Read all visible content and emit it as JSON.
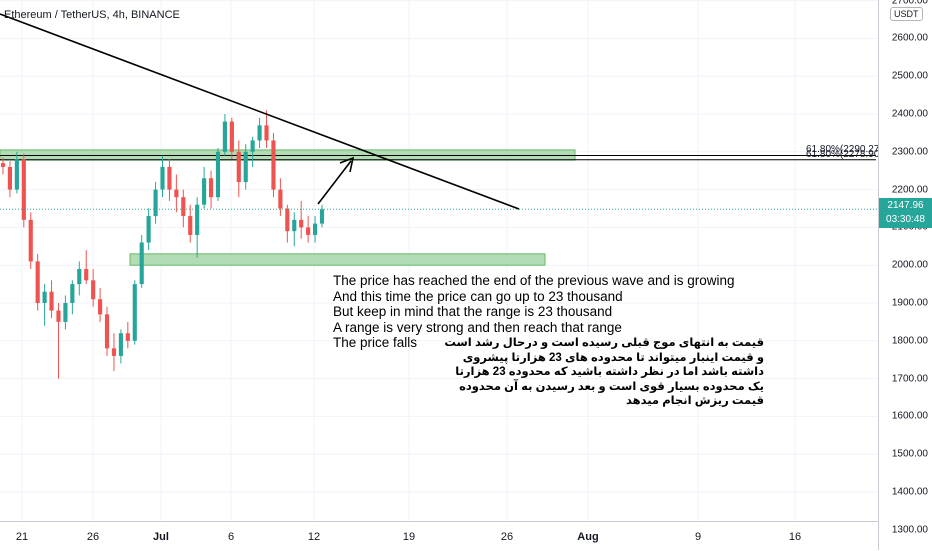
{
  "chart_data": {
    "type": "candlestick",
    "title": "Ethereum / TetherUS, 4h, BINANCE",
    "currency": "USDT",
    "y_ticks": [
      "2700.00",
      "2600.00",
      "2500.00",
      "2400.00",
      "2300.00",
      "2200.00",
      "2100.00",
      "2000.00",
      "1900.00",
      "1800.00",
      "1700.00",
      "1600.00",
      "1500.00",
      "1400.00",
      "1300.00"
    ],
    "ylim": [
      1300,
      2700
    ],
    "x_ticks": [
      {
        "label": "21",
        "bold": false
      },
      {
        "label": "26",
        "bold": false
      },
      {
        "label": "Jul",
        "bold": true
      },
      {
        "label": "6",
        "bold": false
      },
      {
        "label": "12",
        "bold": false
      },
      {
        "label": "19",
        "bold": false
      },
      {
        "label": "26",
        "bold": false
      },
      {
        "label": "Aug",
        "bold": true
      },
      {
        "label": "9",
        "bold": false
      },
      {
        "label": "16",
        "bold": false
      }
    ],
    "last_price": "2147.96",
    "countdown": "03:30:48",
    "fib_levels": [
      {
        "label": "61.80%(2290.27)",
        "value": 2290.27
      },
      {
        "label": "61.80%(2278.90)",
        "value": 2278.9
      }
    ],
    "zones": [
      {
        "name": "resistance-zone",
        "from": 2278,
        "to": 2305
      },
      {
        "name": "support-zone",
        "from": 2000,
        "to": 2030
      }
    ],
    "candles": [
      [
        2270,
        2285,
        2240,
        2260
      ],
      [
        2260,
        2275,
        2180,
        2200
      ],
      [
        2200,
        2300,
        2190,
        2280
      ],
      [
        2280,
        2295,
        2100,
        2120
      ],
      [
        2120,
        2140,
        1990,
        2010
      ],
      [
        2010,
        2030,
        1880,
        1900
      ],
      [
        1900,
        1950,
        1840,
        1930
      ],
      [
        1930,
        1960,
        1860,
        1880
      ],
      [
        1880,
        1900,
        1700,
        1850
      ],
      [
        1850,
        1920,
        1830,
        1900
      ],
      [
        1900,
        1960,
        1870,
        1950
      ],
      [
        1950,
        2010,
        1920,
        1990
      ],
      [
        1990,
        2040,
        1950,
        1960
      ],
      [
        1960,
        1990,
        1890,
        1910
      ],
      [
        1910,
        1940,
        1850,
        1870
      ],
      [
        1870,
        1890,
        1760,
        1780
      ],
      [
        1780,
        1820,
        1720,
        1760
      ],
      [
        1760,
        1830,
        1740,
        1820
      ],
      [
        1820,
        1850,
        1780,
        1800
      ],
      [
        1800,
        1960,
        1790,
        1950
      ],
      [
        1950,
        2080,
        1940,
        2060
      ],
      [
        2060,
        2150,
        2040,
        2130
      ],
      [
        2130,
        2220,
        2110,
        2200
      ],
      [
        2200,
        2290,
        2180,
        2260
      ],
      [
        2260,
        2280,
        2170,
        2200
      ],
      [
        2200,
        2240,
        2140,
        2180
      ],
      [
        2180,
        2200,
        2100,
        2130
      ],
      [
        2130,
        2160,
        2060,
        2080
      ],
      [
        2080,
        2180,
        2020,
        2160
      ],
      [
        2160,
        2260,
        2150,
        2230
      ],
      [
        2230,
        2250,
        2150,
        2180
      ],
      [
        2180,
        2310,
        2170,
        2300
      ],
      [
        2300,
        2400,
        2290,
        2380
      ],
      [
        2380,
        2390,
        2280,
        2300
      ],
      [
        2300,
        2330,
        2180,
        2220
      ],
      [
        2220,
        2320,
        2200,
        2300
      ],
      [
        2300,
        2340,
        2260,
        2330
      ],
      [
        2330,
        2390,
        2310,
        2370
      ],
      [
        2370,
        2410,
        2310,
        2330
      ],
      [
        2330,
        2350,
        2180,
        2200
      ],
      [
        2200,
        2230,
        2130,
        2150
      ],
      [
        2150,
        2160,
        2060,
        2090
      ],
      [
        2090,
        2140,
        2050,
        2120
      ],
      [
        2120,
        2170,
        2070,
        2100
      ],
      [
        2100,
        2130,
        2060,
        2080
      ],
      [
        2080,
        2130,
        2060,
        2110
      ],
      [
        2110,
        2160,
        2100,
        2148
      ]
    ]
  },
  "annotation_en": [
    "The price has reached the end of the previous wave and is growing",
    "And this time the price can go up to 23 thousand",
    "But keep in mind that the range is 23 thousand",
    "A range is very strong and then reach that range",
    "The price falls"
  ],
  "annotation_fa": [
    "قیمت به انتهای موج قبلی رسیده است و درحال رشد است",
    "و قیمت اینبار میتواند تا محدوده های 23 هزارتا پیشروی",
    "داشته باشد اما در نظر داشته باشید که محدوده 23 هزارتا",
    "یک محدوده بسیار قوی است و بعد رسیدن به آن محدوده",
    "قیمت ریزش انجام میدهد"
  ],
  "colors": {
    "up": "#26a69a",
    "down": "#ef5350",
    "zone_fill": "#a5d6a7",
    "zone_border": "#4caf50",
    "trendline": "#000000",
    "last_price": "#26a69a",
    "grid": "#f0f3fa"
  }
}
